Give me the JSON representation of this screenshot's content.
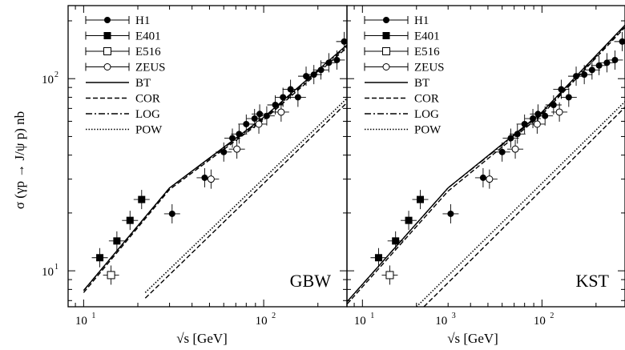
{
  "chart_data": [
    {
      "type": "scatter",
      "panel_label": "GBW",
      "xscale": "log",
      "yscale": "log",
      "xlim": [
        8.2,
        290
      ],
      "ylim": [
        6.5,
        240
      ],
      "xlabel": "√s [GeV]",
      "ylabel": "σ (γp → J/ψ p) nb",
      "x_ticks": [
        "10",
        "10",
        "10"
      ],
      "x_tick_values": [
        10,
        100,
        1000
      ],
      "x_tick_exps": [
        "1",
        "2",
        "3"
      ],
      "y_ticks": [
        "10",
        "10"
      ],
      "y_tick_values": [
        10,
        100
      ],
      "y_tick_exps": [
        "1",
        "2"
      ],
      "legend_position": "top-left",
      "series": [
        {
          "name": "H1",
          "marker": "filled-circle",
          "points": [
            [
              31,
              19.8
            ],
            [
              47,
              30.5
            ],
            [
              60,
              41.5
            ],
            [
              67,
              49
            ],
            [
              73,
              51.5
            ],
            [
              80,
              58
            ],
            [
              89,
              62
            ],
            [
              95,
              65.5
            ],
            [
              104,
              64
            ],
            [
              116,
              73
            ],
            [
              128,
              80
            ],
            [
              141,
              88
            ],
            [
              155,
              80
            ],
            [
              172,
              103
            ],
            [
              190,
              105
            ],
            [
              208,
              111
            ],
            [
              230,
              121
            ],
            [
              255,
              125
            ],
            [
              280,
              156
            ]
          ]
        },
        {
          "name": "E401",
          "marker": "filled-square",
          "points": [
            [
              12.3,
              11.7
            ],
            [
              15.3,
              14.3
            ],
            [
              18.1,
              18.3
            ],
            [
              21,
              23.5
            ]
          ]
        },
        {
          "name": "E516",
          "marker": "open-square",
          "points": [
            [
              14.2,
              9.5
            ]
          ]
        },
        {
          "name": "ZEUS",
          "marker": "open-circle",
          "points": [
            [
              51,
              30
            ],
            [
              71,
              43
            ],
            [
              94,
              58
            ],
            [
              125,
              67
            ]
          ]
        }
      ],
      "curves": [
        {
          "name": "BT",
          "dash": "solid",
          "points": [
            [
              10,
              7.9
            ],
            [
              30,
              27
            ],
            [
              100,
              63
            ],
            [
              290,
              150
            ]
          ]
        },
        {
          "name": "COR",
          "dash": "dashed",
          "points": [
            [
              10,
              7.7
            ],
            [
              30,
              26.5
            ],
            [
              100,
              61
            ],
            [
              290,
              145
            ]
          ]
        },
        {
          "name": "LOG",
          "dash": "dashdot",
          "points": [
            [
              10,
              7.9
            ],
            [
              30,
              27
            ],
            [
              100,
              62
            ],
            [
              290,
              148
            ]
          ]
        },
        {
          "name": "POW",
          "dash": "dotted",
          "points": [
            [
              22,
              7.7
            ],
            [
              290,
              79
            ]
          ]
        }
      ],
      "extra_curves": [
        {
          "name": "dashed-lower",
          "dash": "dashed",
          "points": [
            [
              22,
              7.2
            ],
            [
              290,
              75
            ]
          ]
        }
      ]
    },
    {
      "type": "scatter",
      "panel_label": "KST",
      "xscale": "log",
      "yscale": "log",
      "xlim": [
        8.2,
        290
      ],
      "ylim": [
        6.5,
        240
      ],
      "xlabel": "√s [GeV]",
      "ylabel": "",
      "x_ticks": [
        "10",
        "10"
      ],
      "x_tick_values": [
        10,
        100
      ],
      "x_tick_exps": [
        "1",
        "2"
      ],
      "y_ticks": [],
      "y_tick_values": [
        10,
        100
      ],
      "legend_position": "top-left",
      "series": [
        {
          "name": "H1",
          "marker": "filled-circle",
          "points": [
            [
              31,
              19.8
            ],
            [
              47,
              30.5
            ],
            [
              60,
              41.5
            ],
            [
              67,
              49
            ],
            [
              73,
              51.5
            ],
            [
              80,
              58
            ],
            [
              89,
              62
            ],
            [
              95,
              65.5
            ],
            [
              104,
              64
            ],
            [
              116,
              73
            ],
            [
              128,
              88
            ],
            [
              141,
              80
            ],
            [
              155,
              103
            ],
            [
              172,
              105
            ],
            [
              190,
              111
            ],
            [
              208,
              117
            ],
            [
              230,
              121
            ],
            [
              255,
              125
            ],
            [
              280,
              156
            ]
          ]
        },
        {
          "name": "E401",
          "marker": "filled-square",
          "points": [
            [
              12.3,
              11.7
            ],
            [
              15.3,
              14.3
            ],
            [
              18.1,
              18.3
            ],
            [
              21,
              23.5
            ]
          ]
        },
        {
          "name": "E516",
          "marker": "open-square",
          "points": [
            [
              14.2,
              9.5
            ]
          ]
        },
        {
          "name": "ZEUS",
          "marker": "open-circle",
          "points": [
            [
              51,
              30
            ],
            [
              71,
              43
            ],
            [
              94,
              58
            ],
            [
              125,
              67
            ]
          ]
        }
      ],
      "curves": [
        {
          "name": "BT",
          "dash": "solid",
          "points": [
            [
              8.2,
              6.9
            ],
            [
              30,
              27
            ],
            [
              100,
              67
            ],
            [
              290,
              190
            ]
          ]
        },
        {
          "name": "COR",
          "dash": "dashed",
          "points": [
            [
              8.2,
              6.7
            ],
            [
              30,
              26
            ],
            [
              100,
              65
            ],
            [
              290,
              185
            ]
          ]
        },
        {
          "name": "LOG",
          "dash": "dashdot",
          "points": [
            [
              8.2,
              6.9
            ],
            [
              30,
              27
            ],
            [
              100,
              66
            ],
            [
              290,
              188
            ]
          ]
        },
        {
          "name": "POW",
          "dash": "dotted",
          "points": [
            [
              20,
              6.5
            ],
            [
              290,
              76
            ]
          ]
        }
      ],
      "extra_curves": [
        {
          "name": "dashed-lower",
          "dash": "dashed",
          "points": [
            [
              22,
              6.5
            ],
            [
              290,
              71
            ]
          ]
        }
      ]
    }
  ]
}
